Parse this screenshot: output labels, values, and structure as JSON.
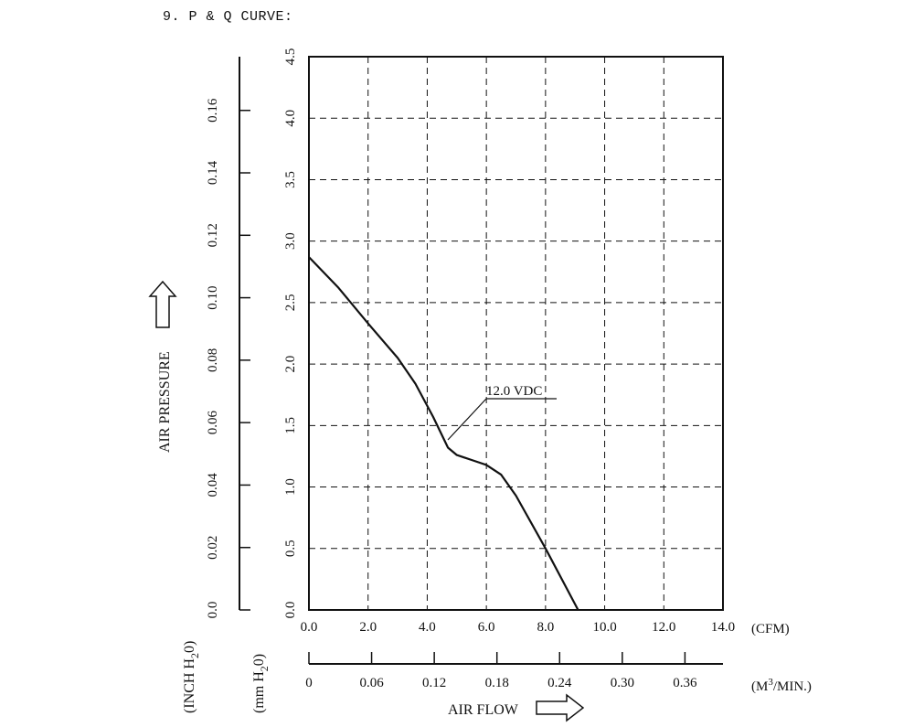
{
  "page": {
    "title": "9. P & Q CURVE:"
  },
  "chart_data": {
    "type": "line",
    "title": "9. P & Q CURVE:",
    "x_axis": {
      "label": "AIR FLOW",
      "unit": "(CFM)",
      "range": [
        0,
        14
      ],
      "ticks": [
        "0.0",
        "2.0",
        "4.0",
        "6.0",
        "8.0",
        "10.0",
        "12.0",
        "14.0"
      ]
    },
    "x2_axis": {
      "unit": "(M3/MIN.)",
      "unit_main": "(M",
      "unit_sup": "3",
      "unit_tail": "/MIN.)",
      "range": [
        0,
        0.3964
      ],
      "ticks": [
        "0",
        "0.06",
        "0.12",
        "0.18",
        "0.24",
        "0.30",
        "0.36"
      ],
      "tick_values": [
        0,
        0.06,
        0.12,
        0.18,
        0.24,
        0.3,
        0.36
      ]
    },
    "y_axis": {
      "label": "AIR PRESSURE",
      "unit": "(mm H2O)",
      "unit_parts": [
        "(mm H",
        "2",
        "0)"
      ],
      "range": [
        0,
        4.5
      ],
      "ticks": [
        "0.0",
        "0.5",
        "1.0",
        "1.5",
        "2.0",
        "2.5",
        "3.0",
        "3.5",
        "4.0",
        "4.5"
      ]
    },
    "y2_axis": {
      "unit": "(INCH H2O)",
      "unit_parts": [
        "(INCH H",
        "2",
        "0)"
      ],
      "range": [
        0,
        0.1772
      ],
      "ticks": [
        "0.0",
        "0.02",
        "0.04",
        "0.06",
        "0.08",
        "0.10",
        "0.12",
        "0.14",
        "0.16"
      ],
      "tick_values": [
        0,
        0.02,
        0.04,
        0.06,
        0.08,
        0.1,
        0.12,
        0.14,
        0.16
      ]
    },
    "grid": true,
    "series": [
      {
        "name": "12.0 VDC",
        "x": [
          0,
          1.0,
          2.0,
          3.0,
          3.6,
          4.2,
          4.7,
          5.0,
          5.5,
          6.0,
          6.5,
          7.0,
          8.0,
          9.1
        ],
        "y": [
          2.87,
          2.62,
          2.33,
          2.05,
          1.84,
          1.57,
          1.32,
          1.26,
          1.22,
          1.18,
          1.1,
          0.93,
          0.5,
          0.0
        ]
      }
    ],
    "annotations": [
      {
        "text": "12.0 VDC",
        "x": 4.7,
        "y": 1.36
      }
    ]
  }
}
